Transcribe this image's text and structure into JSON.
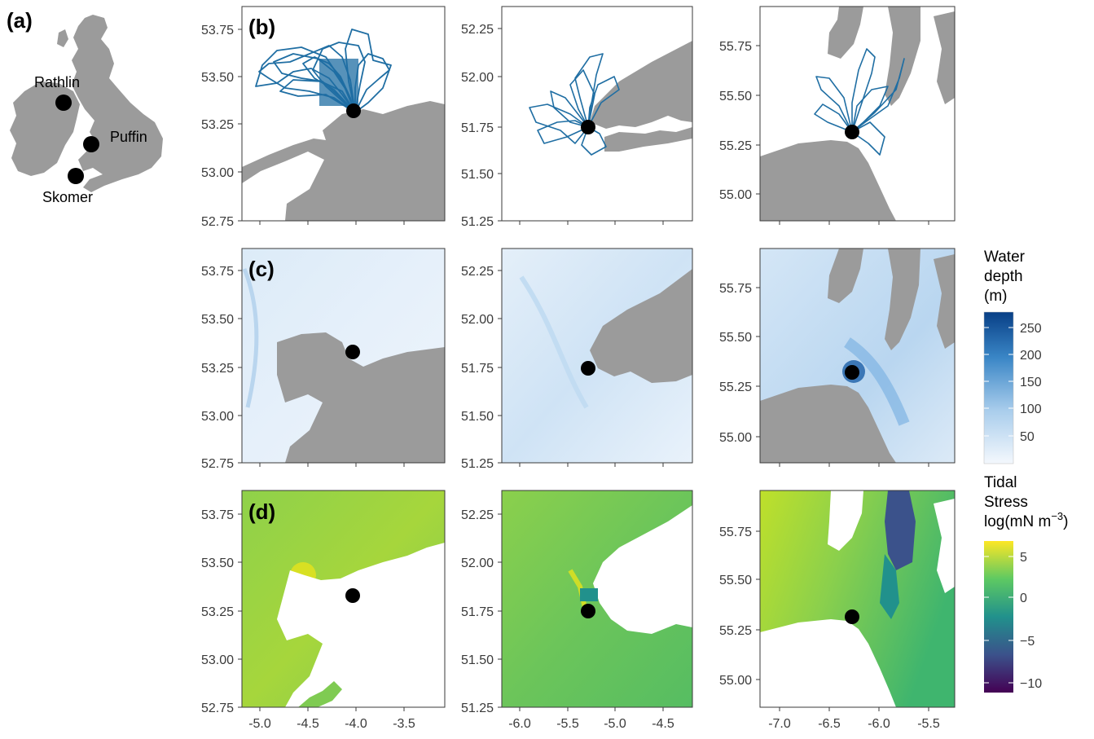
{
  "colors": {
    "land": "#9b9b9b",
    "track": "#1f6ea3",
    "colony": "#000000",
    "depth_low": "#f0f6fd",
    "depth_high": "#0b4c94",
    "viridis": [
      "#440154",
      "#3b528b",
      "#21918c",
      "#5ec962",
      "#fde725"
    ]
  },
  "panels": {
    "a": {
      "label": "(a)",
      "sites": [
        "Rathlin",
        "Puffin",
        "Skomer"
      ]
    },
    "b": {
      "label": "(b)"
    },
    "c": {
      "label": "(c)"
    },
    "d": {
      "label": "(d)"
    }
  },
  "columns": [
    {
      "x_ticks": [
        "-5.0",
        "-4.5",
        "-4.0",
        "-3.5"
      ],
      "y_ticks": [
        "53.75",
        "53.50",
        "53.25",
        "53.00",
        "52.75"
      ]
    },
    {
      "x_ticks": [
        "-6.0",
        "-5.5",
        "-5.0",
        "-4.5"
      ],
      "y_ticks": [
        "52.25",
        "52.00",
        "51.75",
        "51.50",
        "51.25"
      ]
    },
    {
      "x_ticks": [
        "-7.0",
        "-6.5",
        "-6.0",
        "-5.5"
      ],
      "y_ticks": [
        "55.75",
        "55.50",
        "55.25",
        "55.00"
      ]
    }
  ],
  "legend_depth": {
    "title": [
      "Water",
      "depth",
      "(m)"
    ],
    "ticks": [
      "250",
      "200",
      "150",
      "100",
      "50"
    ]
  },
  "legend_stress": {
    "title_lines": [
      "Tidal",
      "Stress"
    ],
    "title_unit": "log(mN m",
    "title_sup": "−3",
    "title_close": ")",
    "ticks": [
      "5",
      "0",
      "−5",
      "−10"
    ]
  }
}
